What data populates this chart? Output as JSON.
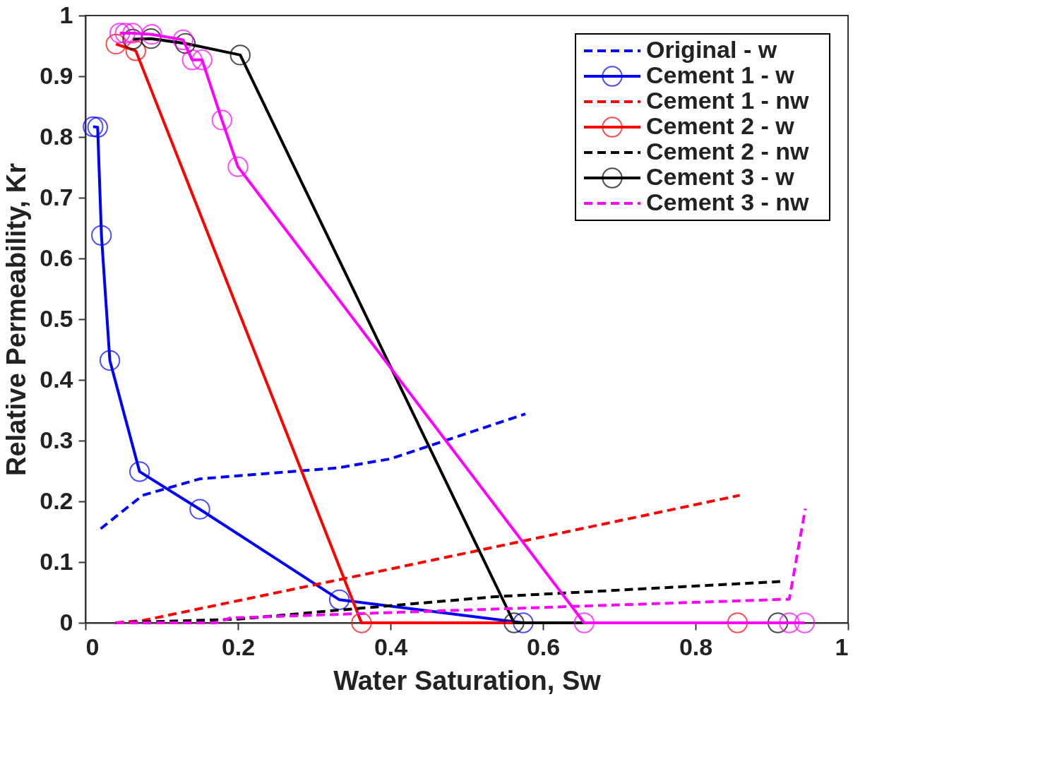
{
  "chart_data": {
    "type": "line",
    "xlabel": "Water Saturation, Sw",
    "ylabel": "Relative Permeability, Kr",
    "xlim": [
      0,
      1
    ],
    "ylim": [
      0,
      1
    ],
    "xticks": [
      0,
      0.2,
      0.4,
      0.6,
      0.8,
      1
    ],
    "yticks": [
      0,
      0.1,
      0.2,
      0.3,
      0.4,
      0.5,
      0.6,
      0.7,
      0.8,
      0.9,
      1
    ],
    "grid": false,
    "legend": "top right",
    "series": [
      {
        "name": "Original - w",
        "color": "#0000ff",
        "line_style": "dashed",
        "marker": "none",
        "x": [
          0.02,
          0.075,
          0.15,
          0.33,
          0.4,
          0.577
        ],
        "values": [
          0.155,
          0.21,
          0.237,
          0.255,
          0.27,
          0.344
        ]
      },
      {
        "name": "Cement 1 - w",
        "color": "#0000ff",
        "line_style": "solid",
        "marker": "circle",
        "x": [
          0.01,
          0.016,
          0.021,
          0.032,
          0.071,
          0.15,
          0.333,
          0.574
        ],
        "values": [
          0.817,
          0.816,
          0.638,
          0.432,
          0.249,
          0.187,
          0.038,
          0
        ]
      },
      {
        "name": "Cement 1 - nw",
        "color": "#ff0000",
        "line_style": "dashed",
        "marker": "none",
        "x": [
          0.039,
          0.076,
          0.39,
          0.858
        ],
        "values": [
          0,
          0.004,
          0.086,
          0.21
        ]
      },
      {
        "name": "Cement 2 - w",
        "color": "#ff0000",
        "line_style": "solid",
        "marker": "circle",
        "x": [
          0.04,
          0.066,
          0.362,
          0.855
        ],
        "values": [
          0.953,
          0.942,
          0,
          0
        ]
      },
      {
        "name": "Cement 2 - nw",
        "color": "#000000",
        "line_style": "dashed",
        "marker": "none",
        "x": [
          0.04,
          0.2,
          0.333,
          0.537,
          0.911
        ],
        "values": [
          0,
          0.006,
          0.021,
          0.043,
          0.068
        ]
      },
      {
        "name": "Cement 3 - w",
        "color": "#000000",
        "line_style": "solid",
        "marker": "circle",
        "x": [
          0.062,
          0.086,
          0.131,
          0.203,
          0.562,
          0.908
        ],
        "values": [
          0.961,
          0.962,
          0.954,
          0.935,
          0,
          0
        ]
      },
      {
        "name": "Cement 3 - nw",
        "color": "#ff00ff",
        "line_style": "dashed",
        "marker": "none",
        "x": [
          0.04,
          0.17,
          0.19,
          0.923,
          0.944
        ],
        "values": [
          0,
          0,
          0.008,
          0.039,
          0.188
        ]
      },
      {
        "color": "#ff00ff",
        "line_style": "solid",
        "marker": "circle",
        "x": [
          0.045,
          0.052,
          0.062,
          0.087,
          0.128,
          0.14,
          0.153,
          0.179,
          0.2,
          0.654,
          0.923,
          0.943
        ],
        "values": [
          0.971,
          0.971,
          0.971,
          0.969,
          0.96,
          0.927,
          0.927,
          0.828,
          0.751,
          0,
          0,
          0
        ]
      }
    ]
  }
}
